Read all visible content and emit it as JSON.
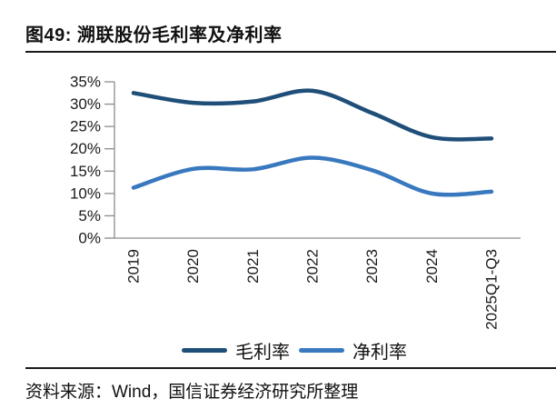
{
  "figure": {
    "title": "图49: 溯联股份毛利率及净利率",
    "source": "资料来源：Wind，国信证券经济研究所整理"
  },
  "colors": {
    "gross_line": "#1F4E79",
    "net_line": "#3878BE",
    "axis": "#8C8C8C",
    "text": "#1A1A1A",
    "rule": "#1A1A1A"
  },
  "chart_data": {
    "type": "line",
    "title": "溯联股份毛利率及净利率",
    "categories": [
      "2019",
      "2020",
      "2021",
      "2022",
      "2023",
      "2024",
      "2025Q1-Q3"
    ],
    "series": [
      {
        "name": "毛利率",
        "color": "#1F4E79",
        "values": [
          32.5,
          30.3,
          30.6,
          33.0,
          28.0,
          22.6,
          22.3
        ]
      },
      {
        "name": "净利率",
        "color": "#3878BE",
        "values": [
          11.3,
          15.5,
          15.4,
          18.0,
          15.2,
          10.0,
          10.4
        ]
      }
    ],
    "ylabel": "",
    "xlabel": "",
    "ylim": [
      0,
      35
    ],
    "ytick_step": 5,
    "ytick_format": "percent",
    "yticks": [
      "0%",
      "5%",
      "10%",
      "15%",
      "20%",
      "25%",
      "30%",
      "35%"
    ],
    "smooth": true,
    "grid": false,
    "legend_position": "bottom",
    "x_labels_rotated": true
  }
}
